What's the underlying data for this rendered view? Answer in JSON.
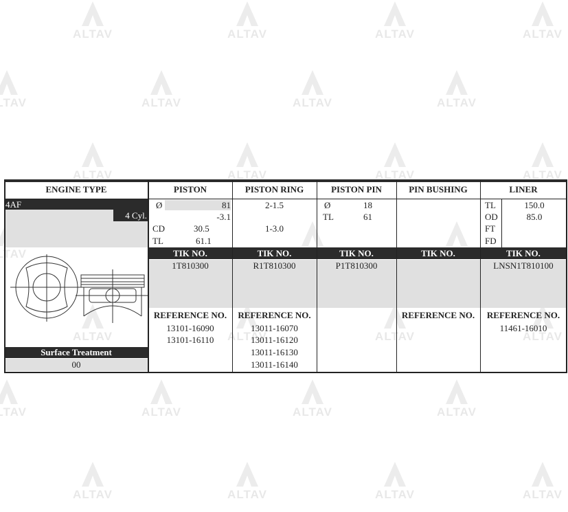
{
  "watermark": {
    "text": "ALTAV",
    "color": "#888888"
  },
  "colors": {
    "dark": "#2b2b2b",
    "grey": "#e0e0e0"
  },
  "headers": [
    "ENGINE TYPE",
    "PISTON",
    "PISTON RING",
    "PISTON PIN",
    "PIN BUSHING",
    "LINER"
  ],
  "engine": {
    "code": "4AF",
    "cylinders": "4 Cyl.",
    "surface_treatment_label": "Surface Treatment",
    "surface_treatment": "00",
    "drawing": "piston-drawing"
  },
  "piston": {
    "diameter_label": "Ø",
    "diameter": "81",
    "offset": "-3.1",
    "cd_label": "CD",
    "cd": "30.5",
    "tl_label": "TL",
    "tl": "61.1",
    "tik_label": "TIK NO.",
    "tik": "1T810300",
    "ref_label": "REFERENCE NO.",
    "refs": [
      "13101-16090",
      "13101-16110"
    ]
  },
  "ring": {
    "values": [
      "2-1.5",
      "1-3.0"
    ],
    "tik_label": "TIK NO.",
    "tik": "R1T810300",
    "ref_label": "REFERENCE NO.",
    "refs": [
      "13011-16070",
      "13011-16120",
      "13011-16130",
      "13011-16140"
    ]
  },
  "pin": {
    "diameter_label": "Ø",
    "diameter": "18",
    "tl_label": "TL",
    "tl": "61",
    "tik_label": "TIK NO.",
    "tik": "P1T810300"
  },
  "bushing": {
    "tik_label": "TIK NO.",
    "ref_label": "REFERENCE NO."
  },
  "liner": {
    "labels": [
      "TL",
      "OD",
      "FT",
      "FD"
    ],
    "tl": "150.0",
    "od": "85.0",
    "tik_label": "TIK NO.",
    "tik": "LNSN1T810100",
    "ref_label": "REFERENCE NO.",
    "refs": [
      "11461-16010"
    ]
  }
}
